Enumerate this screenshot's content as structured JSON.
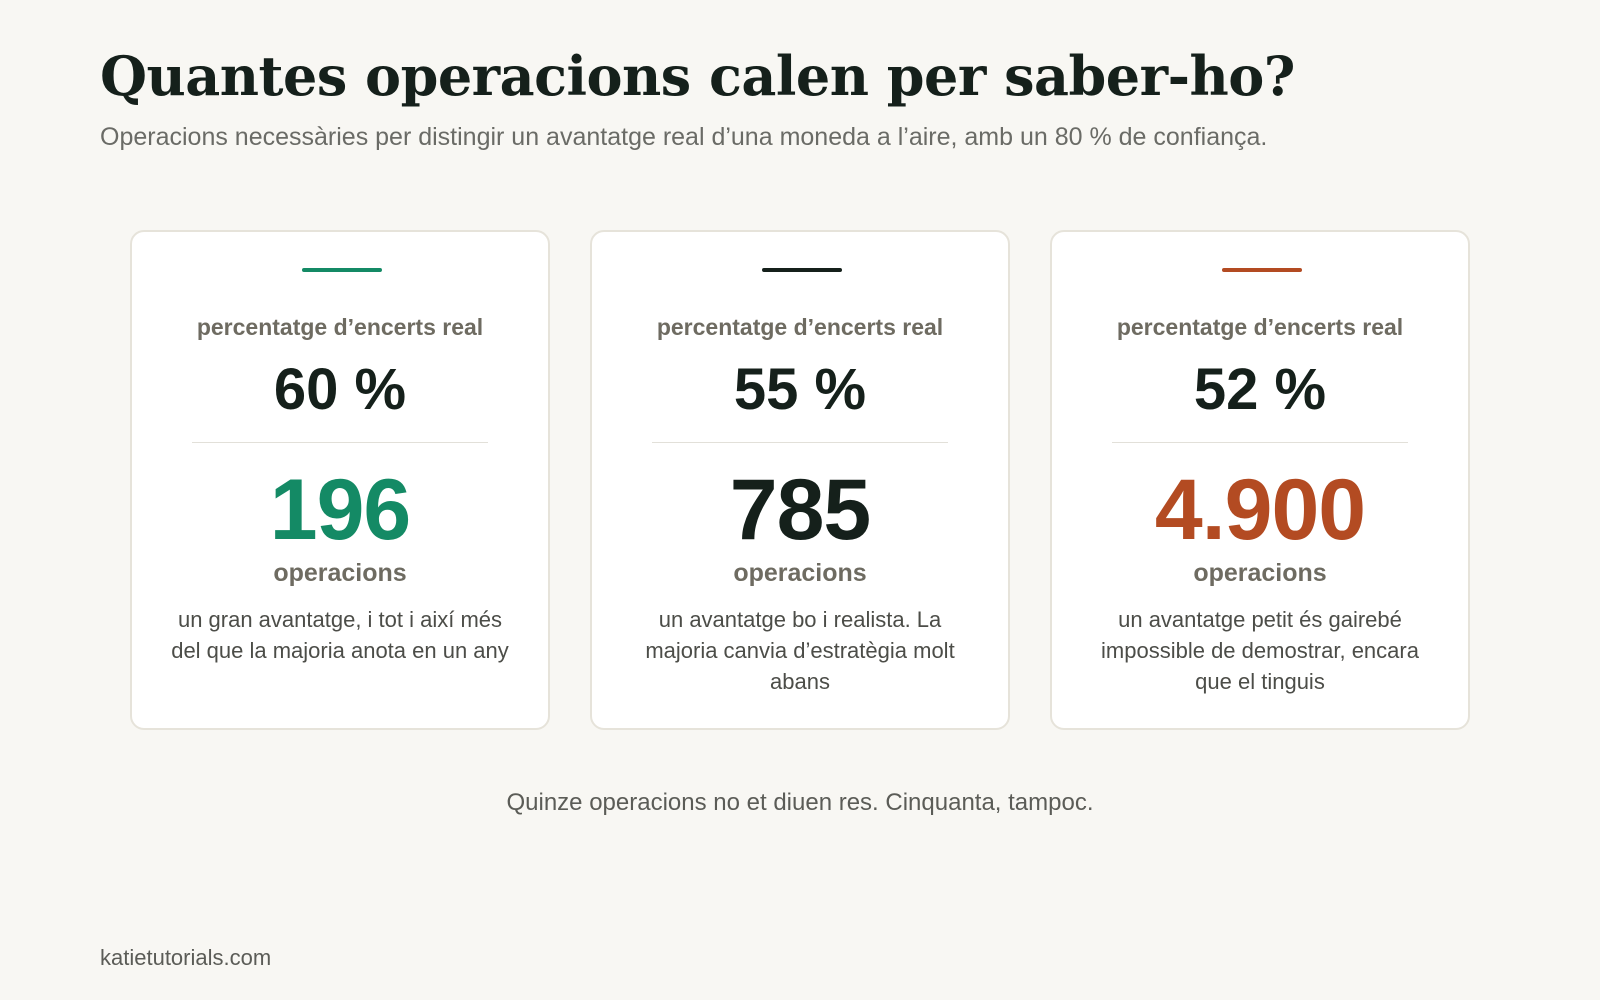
{
  "header": {
    "title": "Quantes operacions calen per saber-ho?",
    "subtitle": "Operacions necessàries per distingir un avantatge real d’una moneda a l’aire, amb un 80 % de confiança."
  },
  "cards": [
    {
      "label": "percentatge d’encerts real",
      "rate": "60 %",
      "operations": "196",
      "unit": "operacions",
      "description": "un gran avantatge, i tot i així més del que la majoria anota en un any",
      "color": "#148a65"
    },
    {
      "label": "percentatge d’encerts real",
      "rate": "55 %",
      "operations": "785",
      "unit": "operacions",
      "description": "un avantatge bo i realista. La majoria canvia d’estratègia molt abans",
      "color": "#15201b"
    },
    {
      "label": "percentatge d’encerts real",
      "rate": "52 %",
      "operations": "4.900",
      "unit": "operacions",
      "description": "un avantatge petit és gairebé impossible de demostrar, encara que el tinguis",
      "color": "#b34b22"
    }
  ],
  "footnote": "Quinze operacions no et diuen res. Cinquanta, tampoc.",
  "footer": {
    "site": "katietutorials.com"
  }
}
